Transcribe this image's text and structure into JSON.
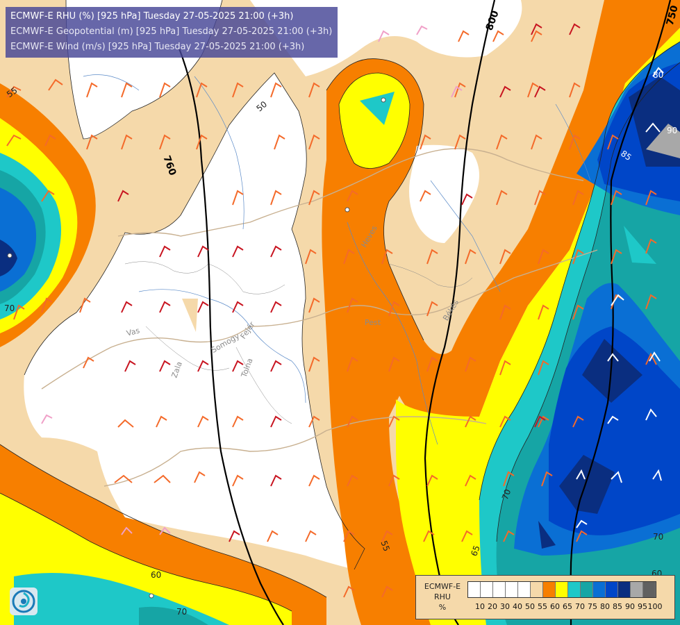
{
  "header": {
    "line1": "ECMWF-E RHU (%) [925 hPa] Tuesday 27-05-2025 21:00 (+3h)",
    "line2": "ECMWF-E Geopotential (m) [925 hPa] Tuesday 27-05-2025 21:00 (+3h)",
    "line3": "ECMWF-E Wind (m/s) [925 hPa] Tuesday 27-05-2025 21:00 (+3h)"
  },
  "legend": {
    "title_line1": "ECMWF-E",
    "title_line2": "RHU",
    "title_line3": "%",
    "levels": [
      "10",
      "20",
      "30",
      "40",
      "50",
      "55",
      "60",
      "65",
      "70",
      "75",
      "80",
      "85",
      "90",
      "95",
      "100"
    ],
    "colors": [
      "#ffffff",
      "#ffffff",
      "#ffffff",
      "#ffffff",
      "#ffffff",
      "#f5d9aa",
      "#f77f00",
      "#ffff00",
      "#1ec8c8",
      "#16a5a5",
      "#0a6fd4",
      "#0046c8",
      "#0a2e80",
      "#a8a8a8",
      "#606060"
    ]
  },
  "contour_labels": {
    "geo_800": "800",
    "geo_750": "750",
    "geo_760": "760",
    "rh_50": "50",
    "rh_55_nw": "55",
    "rh_55_s": "55",
    "rh_60": "60",
    "rh_60_se": "60",
    "rh_65": "65",
    "rh_70_s": "70",
    "rh_70_se": "70",
    "rh_70_e": "70",
    "rh_70_w": "70",
    "rh_80": "80",
    "rh_85": "85",
    "rh_90": "90"
  },
  "places": {
    "vas": "Vas",
    "zala": "Zala",
    "somogy": "Somogy",
    "fejer": "Fejér",
    "tolna": "Tolna",
    "pest": "Pest",
    "heves": "Heves",
    "bekes": "Békés"
  },
  "colors": {
    "white": "#ffffff",
    "tan": "#f5d9aa",
    "orange": "#f77f00",
    "yellow": "#ffff00",
    "cyan": "#1ec8c8",
    "teal": "#16a5a5",
    "blue": "#0a6fd4",
    "darkblue": "#0046c8",
    "navy": "#0a2e80",
    "grey": "#a8a8a8",
    "header_bg": "#46469a"
  }
}
